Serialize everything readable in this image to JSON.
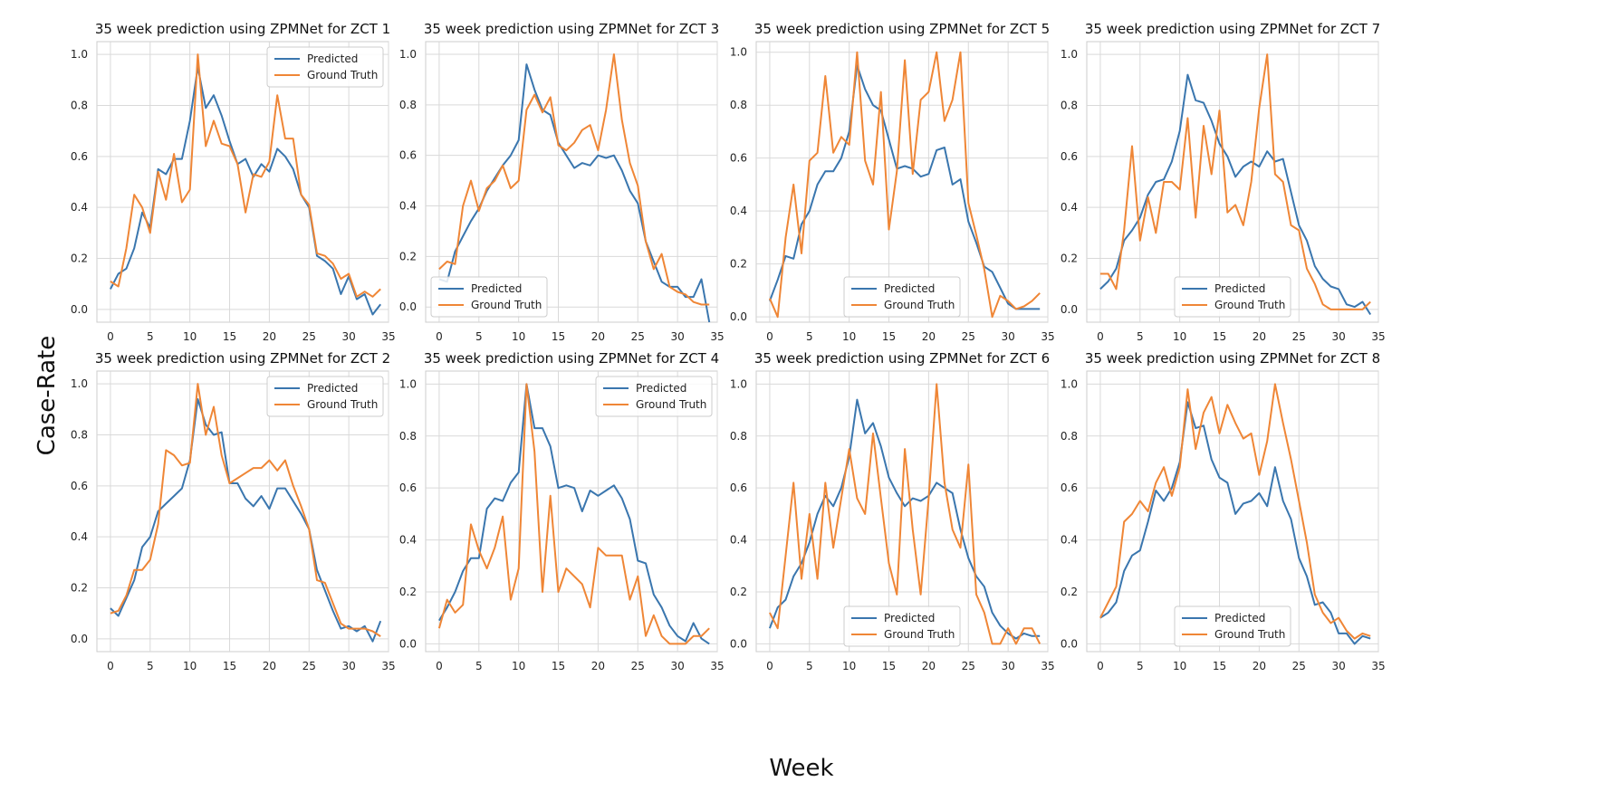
{
  "figure": {
    "xlabel": "Week",
    "ylabel": "Case-Rate",
    "colors": {
      "predicted": "#3a76ae",
      "ground_truth": "#ef8636",
      "grid": "#d9d9d9",
      "spine": "#cccccc"
    }
  },
  "chart_data": [
    {
      "type": "line",
      "title": "35 week prediction using ZPMNet for ZCT 1",
      "legend": "top-right",
      "xlim": [
        -1.7,
        35
      ],
      "ylim": [
        -0.05,
        1.05
      ],
      "xticks": [
        0,
        5,
        10,
        15,
        20,
        25,
        30,
        35
      ],
      "yticks": [
        "0.0",
        "0.2",
        "0.4",
        "0.6",
        "0.8",
        "1.0"
      ],
      "x": [
        0,
        1,
        2,
        3,
        4,
        5,
        6,
        7,
        8,
        9,
        10,
        11,
        12,
        13,
        14,
        15,
        16,
        17,
        18,
        19,
        20,
        21,
        22,
        23,
        24,
        25,
        26,
        27,
        28,
        29,
        30,
        31,
        32,
        33,
        34
      ],
      "series": [
        {
          "name": "Predicted",
          "values": [
            0.08,
            0.14,
            0.16,
            0.24,
            0.38,
            0.32,
            0.55,
            0.53,
            0.59,
            0.59,
            0.74,
            0.95,
            0.79,
            0.84,
            0.76,
            0.66,
            0.57,
            0.59,
            0.52,
            0.57,
            0.54,
            0.63,
            0.6,
            0.55,
            0.45,
            0.4,
            0.21,
            0.19,
            0.16,
            0.06,
            0.13,
            0.04,
            0.06,
            -0.02,
            0.02
          ]
        },
        {
          "name": "Ground Truth",
          "values": [
            0.11,
            0.09,
            0.24,
            0.45,
            0.4,
            0.3,
            0.54,
            0.43,
            0.61,
            0.42,
            0.47,
            1.0,
            0.64,
            0.74,
            0.65,
            0.64,
            0.57,
            0.38,
            0.53,
            0.52,
            0.58,
            0.84,
            0.67,
            0.67,
            0.45,
            0.41,
            0.22,
            0.21,
            0.18,
            0.12,
            0.14,
            0.05,
            0.07,
            0.05,
            0.08
          ]
        }
      ]
    },
    {
      "type": "line",
      "title": "35 week prediction using ZPMNet for ZCT 3",
      "legend": "bottom-left",
      "xlim": [
        -1.7,
        35
      ],
      "ylim": [
        -0.06,
        1.05
      ],
      "xticks": [
        0,
        5,
        10,
        15,
        20,
        25,
        30,
        35
      ],
      "yticks": [
        "0.0",
        "0.2",
        "0.4",
        "0.6",
        "0.8",
        "1.0"
      ],
      "x": [
        0,
        1,
        2,
        3,
        4,
        5,
        6,
        7,
        8,
        9,
        10,
        11,
        12,
        13,
        14,
        15,
        16,
        17,
        18,
        19,
        20,
        21,
        22,
        23,
        24,
        25,
        26,
        27,
        28,
        29,
        30,
        31,
        32,
        33,
        34
      ],
      "series": [
        {
          "name": "Predicted",
          "values": [
            0.11,
            0.1,
            0.22,
            0.28,
            0.34,
            0.39,
            0.46,
            0.51,
            0.56,
            0.6,
            0.66,
            0.96,
            0.86,
            0.78,
            0.76,
            0.65,
            0.6,
            0.55,
            0.57,
            0.56,
            0.6,
            0.59,
            0.6,
            0.54,
            0.46,
            0.41,
            0.26,
            0.18,
            0.1,
            0.08,
            0.08,
            0.04,
            0.04,
            0.11,
            -0.06
          ]
        },
        {
          "name": "Ground Truth",
          "values": [
            0.15,
            0.18,
            0.17,
            0.4,
            0.5,
            0.38,
            0.47,
            0.5,
            0.56,
            0.47,
            0.5,
            0.78,
            0.84,
            0.77,
            0.83,
            0.64,
            0.62,
            0.65,
            0.7,
            0.72,
            0.62,
            0.78,
            1.0,
            0.74,
            0.57,
            0.48,
            0.26,
            0.15,
            0.21,
            0.08,
            0.06,
            0.05,
            0.02,
            0.01,
            0.01
          ]
        }
      ]
    },
    {
      "type": "line",
      "title": "35 week prediction using ZPMNet for ZCT 5",
      "legend": "bottom-center",
      "xlim": [
        -1.7,
        35
      ],
      "ylim": [
        -0.02,
        1.04
      ],
      "xticks": [
        0,
        5,
        10,
        15,
        20,
        25,
        30,
        35
      ],
      "yticks": [
        "0.0",
        "0.2",
        "0.4",
        "0.6",
        "0.8",
        "1.0"
      ],
      "x": [
        0,
        1,
        2,
        3,
        4,
        5,
        6,
        7,
        8,
        9,
        10,
        11,
        12,
        13,
        14,
        15,
        16,
        17,
        18,
        19,
        20,
        21,
        22,
        23,
        24,
        25,
        26,
        27,
        28,
        29,
        30,
        31,
        32,
        33,
        34
      ],
      "series": [
        {
          "name": "Predicted",
          "values": [
            0.06,
            0.14,
            0.23,
            0.22,
            0.35,
            0.4,
            0.5,
            0.55,
            0.55,
            0.6,
            0.7,
            0.95,
            0.86,
            0.8,
            0.78,
            0.67,
            0.56,
            0.57,
            0.56,
            0.53,
            0.54,
            0.63,
            0.64,
            0.5,
            0.52,
            0.36,
            0.28,
            0.19,
            0.17,
            0.11,
            0.05,
            0.03,
            0.03,
            0.03,
            0.03
          ]
        },
        {
          "name": "Ground Truth",
          "values": [
            0.07,
            0.0,
            0.3,
            0.5,
            0.24,
            0.59,
            0.62,
            0.91,
            0.62,
            0.68,
            0.65,
            1.0,
            0.59,
            0.5,
            0.85,
            0.33,
            0.55,
            0.97,
            0.54,
            0.82,
            0.85,
            1.0,
            0.74,
            0.82,
            1.0,
            0.43,
            0.31,
            0.18,
            0.0,
            0.08,
            0.06,
            0.03,
            0.04,
            0.06,
            0.09
          ]
        }
      ]
    },
    {
      "type": "line",
      "title": "35 week prediction using ZPMNet for ZCT 7",
      "legend": "bottom-center",
      "xlim": [
        -1.7,
        35
      ],
      "ylim": [
        -0.05,
        1.05
      ],
      "xticks": [
        0,
        5,
        10,
        15,
        20,
        25,
        30,
        35
      ],
      "yticks": [
        "0.0",
        "0.2",
        "0.4",
        "0.6",
        "0.8",
        "1.0"
      ],
      "x": [
        0,
        1,
        2,
        3,
        4,
        5,
        6,
        7,
        8,
        9,
        10,
        11,
        12,
        13,
        14,
        15,
        16,
        17,
        18,
        19,
        20,
        21,
        22,
        23,
        24,
        25,
        26,
        27,
        28,
        29,
        30,
        31,
        32,
        33,
        34
      ],
      "series": [
        {
          "name": "Predicted",
          "values": [
            0.08,
            0.11,
            0.16,
            0.27,
            0.31,
            0.36,
            0.45,
            0.5,
            0.51,
            0.58,
            0.7,
            0.92,
            0.82,
            0.81,
            0.74,
            0.65,
            0.6,
            0.52,
            0.56,
            0.58,
            0.56,
            0.62,
            0.58,
            0.59,
            0.46,
            0.33,
            0.27,
            0.17,
            0.12,
            0.09,
            0.08,
            0.02,
            0.01,
            0.03,
            -0.02
          ]
        },
        {
          "name": "Ground Truth",
          "values": [
            0.14,
            0.14,
            0.08,
            0.31,
            0.64,
            0.27,
            0.44,
            0.3,
            0.5,
            0.5,
            0.47,
            0.75,
            0.36,
            0.72,
            0.53,
            0.78,
            0.38,
            0.41,
            0.33,
            0.5,
            0.79,
            1.0,
            0.53,
            0.5,
            0.33,
            0.31,
            0.16,
            0.1,
            0.02,
            0.0,
            0.0,
            0.0,
            0.0,
            0.0,
            0.03
          ]
        }
      ]
    },
    {
      "type": "line",
      "title": "35 week prediction using ZPMNet for ZCT 2",
      "legend": "top-right",
      "xlim": [
        -1.7,
        35
      ],
      "ylim": [
        -0.05,
        1.05
      ],
      "xticks": [
        0,
        5,
        10,
        15,
        20,
        25,
        30,
        35
      ],
      "yticks": [
        "0.0",
        "0.2",
        "0.4",
        "0.6",
        "0.8",
        "1.0"
      ],
      "x": [
        0,
        1,
        2,
        3,
        4,
        5,
        6,
        7,
        8,
        9,
        10,
        11,
        12,
        13,
        14,
        15,
        16,
        17,
        18,
        19,
        20,
        21,
        22,
        23,
        24,
        25,
        26,
        27,
        28,
        29,
        30,
        31,
        32,
        33,
        34
      ],
      "series": [
        {
          "name": "Predicted",
          "values": [
            0.12,
            0.09,
            0.16,
            0.23,
            0.36,
            0.4,
            0.5,
            0.53,
            0.56,
            0.59,
            0.7,
            0.94,
            0.84,
            0.8,
            0.81,
            0.61,
            0.61,
            0.55,
            0.52,
            0.56,
            0.51,
            0.59,
            0.59,
            0.54,
            0.49,
            0.43,
            0.27,
            0.19,
            0.11,
            0.04,
            0.05,
            0.03,
            0.05,
            -0.01,
            0.07
          ]
        },
        {
          "name": "Ground Truth",
          "values": [
            0.1,
            0.11,
            0.17,
            0.27,
            0.27,
            0.31,
            0.45,
            0.74,
            0.72,
            0.68,
            0.69,
            1.0,
            0.8,
            0.91,
            0.72,
            0.61,
            0.63,
            0.65,
            0.67,
            0.67,
            0.7,
            0.66,
            0.7,
            0.6,
            0.52,
            0.43,
            0.23,
            0.22,
            0.14,
            0.06,
            0.04,
            0.04,
            0.04,
            0.03,
            0.01
          ]
        }
      ]
    },
    {
      "type": "line",
      "title": "35 week prediction using ZPMNet for ZCT 4",
      "legend": "top-right",
      "xlim": [
        -1.7,
        35
      ],
      "ylim": [
        -0.03,
        1.05
      ],
      "xticks": [
        0,
        5,
        10,
        15,
        20,
        25,
        30,
        35
      ],
      "yticks": [
        "0.0",
        "0.2",
        "0.4",
        "0.6",
        "0.8",
        "1.0"
      ],
      "x": [
        0,
        1,
        2,
        3,
        4,
        5,
        6,
        7,
        8,
        9,
        10,
        11,
        12,
        13,
        14,
        15,
        16,
        17,
        18,
        19,
        20,
        21,
        22,
        23,
        24,
        25,
        26,
        27,
        28,
        29,
        30,
        31,
        32,
        33,
        34
      ],
      "series": [
        {
          "name": "Predicted",
          "values": [
            0.09,
            0.14,
            0.2,
            0.28,
            0.33,
            0.33,
            0.52,
            0.56,
            0.55,
            0.62,
            0.66,
            1.0,
            0.83,
            0.83,
            0.76,
            0.6,
            0.61,
            0.6,
            0.51,
            0.59,
            0.57,
            0.59,
            0.61,
            0.56,
            0.48,
            0.32,
            0.31,
            0.19,
            0.14,
            0.07,
            0.03,
            0.01,
            0.08,
            0.02,
            0.0
          ]
        },
        {
          "name": "Ground Truth",
          "values": [
            0.06,
            0.17,
            0.12,
            0.15,
            0.46,
            0.36,
            0.29,
            0.37,
            0.49,
            0.17,
            0.29,
            1.0,
            0.74,
            0.2,
            0.57,
            0.2,
            0.29,
            0.26,
            0.23,
            0.14,
            0.37,
            0.34,
            0.34,
            0.34,
            0.17,
            0.26,
            0.03,
            0.11,
            0.03,
            0.0,
            0.0,
            0.0,
            0.03,
            0.03,
            0.06
          ]
        }
      ]
    },
    {
      "type": "line",
      "title": "35 week prediction using ZPMNet for ZCT 6",
      "legend": "bottom-center",
      "xlim": [
        -1.7,
        35
      ],
      "ylim": [
        -0.03,
        1.05
      ],
      "xticks": [
        0,
        5,
        10,
        15,
        20,
        25,
        30,
        35
      ],
      "yticks": [
        "0.0",
        "0.2",
        "0.4",
        "0.6",
        "0.8",
        "1.0"
      ],
      "x": [
        0,
        1,
        2,
        3,
        4,
        5,
        6,
        7,
        8,
        9,
        10,
        11,
        12,
        13,
        14,
        15,
        16,
        17,
        18,
        19,
        20,
        21,
        22,
        23,
        24,
        25,
        26,
        27,
        28,
        29,
        30,
        31,
        32,
        33,
        34
      ],
      "series": [
        {
          "name": "Predicted",
          "values": [
            0.06,
            0.14,
            0.17,
            0.26,
            0.31,
            0.39,
            0.5,
            0.57,
            0.53,
            0.6,
            0.72,
            0.94,
            0.81,
            0.85,
            0.76,
            0.64,
            0.58,
            0.53,
            0.56,
            0.55,
            0.57,
            0.62,
            0.6,
            0.58,
            0.44,
            0.33,
            0.26,
            0.22,
            0.12,
            0.07,
            0.04,
            0.02,
            0.04,
            0.03,
            0.03
          ]
        },
        {
          "name": "Ground Truth",
          "values": [
            0.12,
            0.06,
            0.34,
            0.62,
            0.25,
            0.5,
            0.25,
            0.62,
            0.37,
            0.56,
            0.75,
            0.56,
            0.5,
            0.81,
            0.56,
            0.31,
            0.19,
            0.75,
            0.44,
            0.19,
            0.56,
            1.0,
            0.62,
            0.44,
            0.37,
            0.69,
            0.19,
            0.12,
            0.0,
            0.0,
            0.06,
            0.0,
            0.06,
            0.06,
            0.0
          ]
        }
      ]
    },
    {
      "type": "line",
      "title": "35 week prediction using ZPMNet for ZCT 8",
      "legend": "bottom-center",
      "xlim": [
        -1.7,
        35
      ],
      "ylim": [
        -0.03,
        1.05
      ],
      "xticks": [
        0,
        5,
        10,
        15,
        20,
        25,
        30,
        35
      ],
      "yticks": [
        "0.0",
        "0.2",
        "0.4",
        "0.6",
        "0.8",
        "1.0"
      ],
      "x": [
        0,
        1,
        2,
        3,
        4,
        5,
        6,
        7,
        8,
        9,
        10,
        11,
        12,
        13,
        14,
        15,
        16,
        17,
        18,
        19,
        20,
        21,
        22,
        23,
        24,
        25,
        26,
        27,
        28,
        29,
        30,
        31,
        32,
        33,
        34
      ],
      "series": [
        {
          "name": "Predicted",
          "values": [
            0.1,
            0.12,
            0.16,
            0.28,
            0.34,
            0.36,
            0.47,
            0.59,
            0.55,
            0.6,
            0.7,
            0.93,
            0.83,
            0.84,
            0.71,
            0.64,
            0.62,
            0.5,
            0.54,
            0.55,
            0.58,
            0.53,
            0.68,
            0.55,
            0.48,
            0.33,
            0.26,
            0.15,
            0.16,
            0.12,
            0.04,
            0.04,
            0.0,
            0.03,
            0.02
          ]
        },
        {
          "name": "Ground Truth",
          "values": [
            0.1,
            0.16,
            0.22,
            0.47,
            0.5,
            0.55,
            0.51,
            0.62,
            0.68,
            0.57,
            0.68,
            0.98,
            0.75,
            0.89,
            0.95,
            0.81,
            0.92,
            0.85,
            0.79,
            0.81,
            0.65,
            0.78,
            1.0,
            0.85,
            0.71,
            0.55,
            0.39,
            0.19,
            0.12,
            0.08,
            0.1,
            0.05,
            0.02,
            0.04,
            0.03
          ]
        }
      ]
    }
  ]
}
